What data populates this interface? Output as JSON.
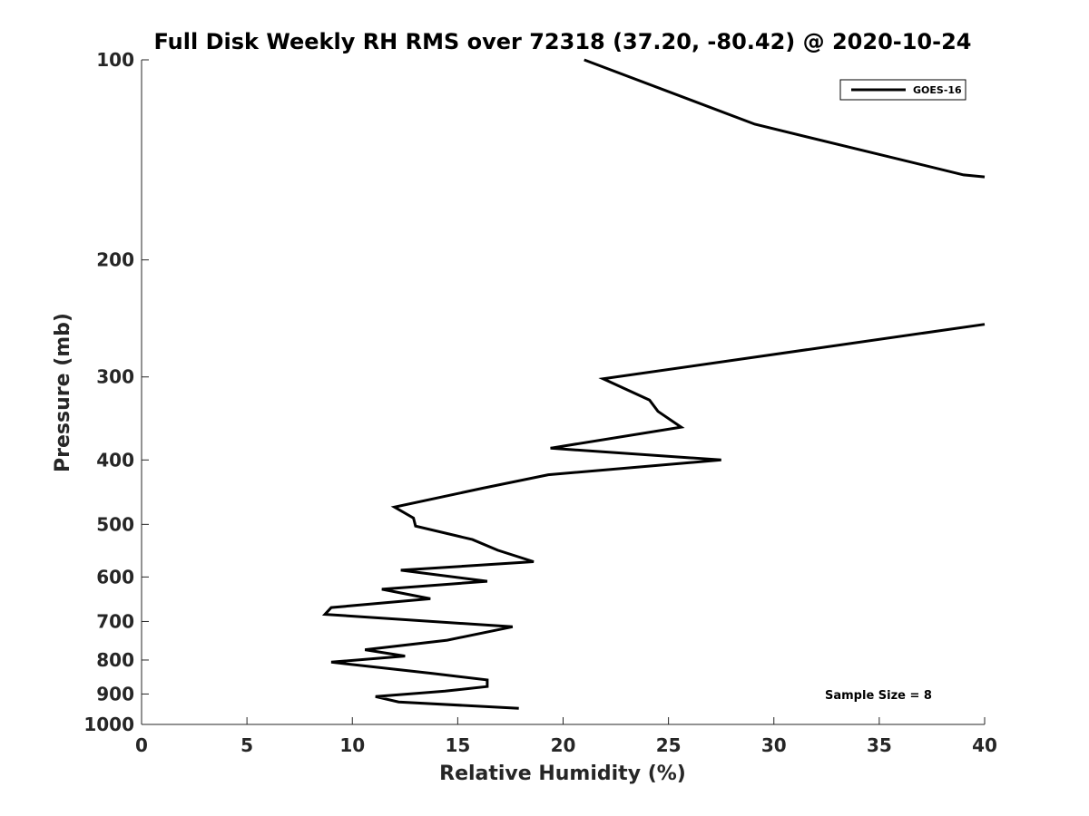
{
  "chart_data": {
    "type": "line",
    "title": "Full Disk Weekly RH RMS over 72318 (37.20, -80.42) @ 2020-10-24",
    "xlabel": "Relative Humidity (%)",
    "ylabel": "Pressure (mb)",
    "xlim": [
      0,
      40
    ],
    "ylim": [
      1000,
      100
    ],
    "yscale": "log",
    "y_reversed": true,
    "xticks": [
      "0",
      "5",
      "10",
      "15",
      "20",
      "25",
      "30",
      "35",
      "40"
    ],
    "yticks": [
      "100",
      "200",
      "300",
      "400",
      "500",
      "600",
      "700",
      "800",
      "900",
      "1000"
    ],
    "grid": false,
    "legend_position": "top-right",
    "annotation": "Sample Size = 8",
    "series": [
      {
        "name": "GOES-16",
        "color": "#000000",
        "segments": [
          {
            "x": [
              21.0,
              29.1,
              39.0,
              40.0
            ],
            "y": [
              100,
              125,
              149,
              150
            ]
          },
          {
            "x": [
              40.0,
              21.9,
              24.1,
              24.5,
              25.6,
              19.4,
              27.5,
              19.3,
              16.2,
              12.0,
              12.9,
              13.0,
              15.7,
              16.9,
              18.6,
              12.3,
              16.4,
              11.4,
              13.7,
              9.0,
              8.7,
              17.6,
              14.5,
              10.6,
              12.5,
              9.0,
              13.8,
              16.4,
              16.4,
              14.4,
              11.1,
              12.2,
              17.9
            ],
            "y": [
              250,
              302,
              325,
              338,
              357,
              384,
              400,
              421,
              441,
              471,
              489,
              503,
              527,
              547,
              569,
              586,
              609,
              626,
              647,
              667,
              683,
              713,
              747,
              772,
              789,
              806,
              838,
              857,
              877,
              891,
              908,
              925,
              946
            ]
          }
        ]
      }
    ]
  }
}
